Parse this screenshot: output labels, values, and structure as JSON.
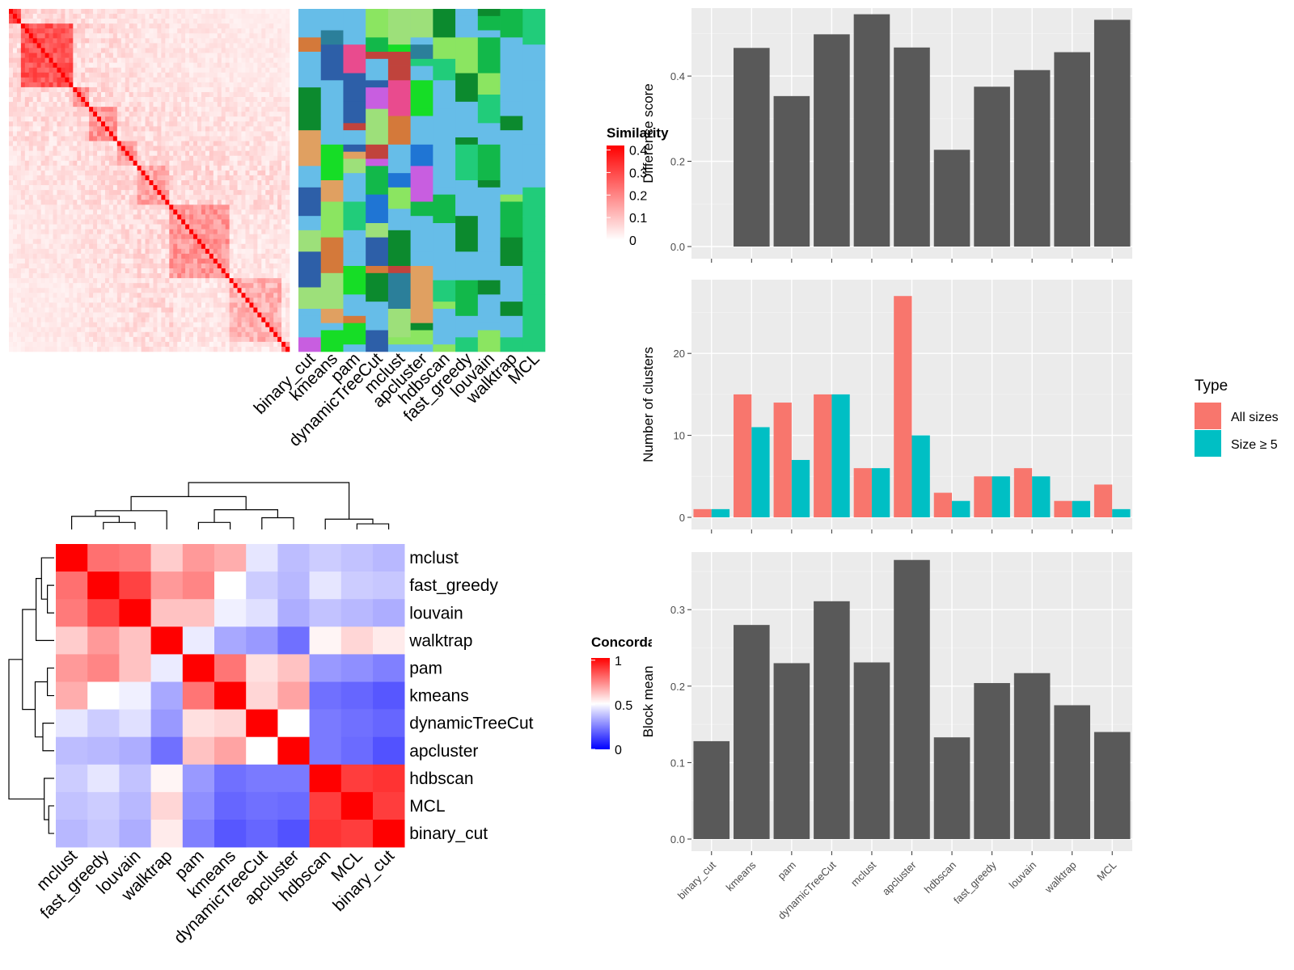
{
  "methods": [
    "binary_cut",
    "kmeans",
    "pam",
    "dynamicTreeCut",
    "mclust",
    "apcluster",
    "hdbscan",
    "fast_greedy",
    "louvain",
    "walktrap",
    "MCL"
  ],
  "colors": {
    "panel_bg": "#ebebeb",
    "grid_major": "#ffffff",
    "grid_minor": "#f3f3f3",
    "bar": "#595959",
    "all_sizes": "#f8766d",
    "size_ge5": "#00bfc4",
    "sim_high": "#ff0000",
    "sim_low": "#ffffff",
    "conc_high": "#ff0000",
    "conc_mid": "#ffffff",
    "conc_low": "#0000ff",
    "cluster_bg": "#66bde8",
    "cluster_palette": [
      "#8be561",
      "#21cc7a",
      "#0c8a2e",
      "#12b84a",
      "#d4793a",
      "#e0a061",
      "#1f75d4",
      "#2d5fa8",
      "#c85ee0",
      "#c0433c",
      "#16dd26",
      "#e94b8e",
      "#2b7f9a",
      "#9de07a"
    ]
  },
  "similarity_heatmap": {
    "legend_title": "Similarity",
    "legend_ticks": [
      "0",
      "0.1",
      "0.2",
      "0.3",
      "0.4"
    ],
    "column_labels": [
      "binary_cut",
      "kmeans",
      "pam",
      "dynamicTreeCut",
      "mclust",
      "apcluster",
      "hdbscan",
      "fast_greedy",
      "louvain",
      "walktrap",
      "MCL"
    ]
  },
  "concordance_heatmap": {
    "legend_title": "Concordance",
    "legend_ticks": [
      "0",
      "0.5",
      "1"
    ],
    "order": [
      "mclust",
      "fast_greedy",
      "louvain",
      "walktrap",
      "pam",
      "kmeans",
      "dynamicTreeCut",
      "apcluster",
      "hdbscan",
      "MCL",
      "binary_cut"
    ],
    "matrix": [
      [
        1.0,
        0.78,
        0.76,
        0.6,
        0.7,
        0.66,
        0.45,
        0.37,
        0.4,
        0.38,
        0.36
      ],
      [
        0.78,
        1.0,
        0.87,
        0.7,
        0.74,
        0.5,
        0.4,
        0.36,
        0.45,
        0.4,
        0.39
      ],
      [
        0.76,
        0.87,
        1.0,
        0.62,
        0.62,
        0.47,
        0.44,
        0.34,
        0.38,
        0.36,
        0.34
      ],
      [
        0.6,
        0.7,
        0.62,
        1.0,
        0.46,
        0.33,
        0.3,
        0.22,
        0.52,
        0.58,
        0.54
      ],
      [
        0.7,
        0.74,
        0.62,
        0.46,
        1.0,
        0.77,
        0.56,
        0.62,
        0.3,
        0.28,
        0.25
      ],
      [
        0.66,
        0.5,
        0.47,
        0.33,
        0.77,
        1.0,
        0.58,
        0.68,
        0.22,
        0.2,
        0.17
      ],
      [
        0.45,
        0.4,
        0.44,
        0.3,
        0.56,
        0.58,
        1.0,
        0.5,
        0.24,
        0.22,
        0.2
      ],
      [
        0.37,
        0.36,
        0.34,
        0.22,
        0.62,
        0.68,
        0.5,
        1.0,
        0.24,
        0.21,
        0.16
      ],
      [
        0.4,
        0.45,
        0.38,
        0.52,
        0.3,
        0.22,
        0.24,
        0.24,
        1.0,
        0.88,
        0.9
      ],
      [
        0.38,
        0.4,
        0.36,
        0.58,
        0.28,
        0.2,
        0.22,
        0.21,
        0.88,
        1.0,
        0.88
      ],
      [
        0.36,
        0.39,
        0.34,
        0.54,
        0.25,
        0.17,
        0.2,
        0.16,
        0.9,
        0.88,
        1.0
      ]
    ]
  },
  "chart_data": [
    {
      "type": "bar",
      "categories": [
        "binary_cut",
        "kmeans",
        "pam",
        "dynamicTreeCut",
        "mclust",
        "apcluster",
        "hdbscan",
        "fast_greedy",
        "louvain",
        "walktrap",
        "MCL"
      ],
      "values": [
        0,
        0.466,
        0.353,
        0.498,
        0.545,
        0.467,
        0.227,
        0.375,
        0.414,
        0.456,
        0.532
      ],
      "xlabel": "",
      "ylabel": "Difference score",
      "ylim": [
        0,
        0.5
      ],
      "yticks": [
        "0.0",
        "0.2",
        "0.4"
      ],
      "grid": true
    },
    {
      "type": "bar",
      "categories": [
        "binary_cut",
        "kmeans",
        "pam",
        "dynamicTreeCut",
        "mclust",
        "apcluster",
        "hdbscan",
        "fast_greedy",
        "louvain",
        "walktrap",
        "MCL"
      ],
      "series": [
        {
          "name": "All sizes",
          "values": [
            1,
            15,
            14,
            15,
            6,
            27,
            3,
            5,
            6,
            2,
            4
          ]
        },
        {
          "name": "Size ≥ 5",
          "values": [
            1,
            11,
            7,
            15,
            6,
            10,
            2,
            5,
            5,
            2,
            1
          ]
        }
      ],
      "xlabel": "",
      "ylabel": "Number of clusters",
      "ylim": [
        0,
        28
      ],
      "yticks": [
        "0",
        "10",
        "20"
      ],
      "legend_title": "Type",
      "legend": "right",
      "grid": true
    },
    {
      "type": "bar",
      "categories": [
        "binary_cut",
        "kmeans",
        "pam",
        "dynamicTreeCut",
        "mclust",
        "apcluster",
        "hdbscan",
        "fast_greedy",
        "louvain",
        "walktrap",
        "MCL"
      ],
      "values": [
        0.128,
        0.28,
        0.23,
        0.311,
        0.231,
        0.365,
        0.133,
        0.204,
        0.217,
        0.175,
        0.14
      ],
      "xlabel": "",
      "ylabel": "Block mean",
      "ylim": [
        0,
        0.37
      ],
      "yticks": [
        "0.0",
        "0.1",
        "0.2",
        "0.3"
      ],
      "grid": true
    }
  ]
}
